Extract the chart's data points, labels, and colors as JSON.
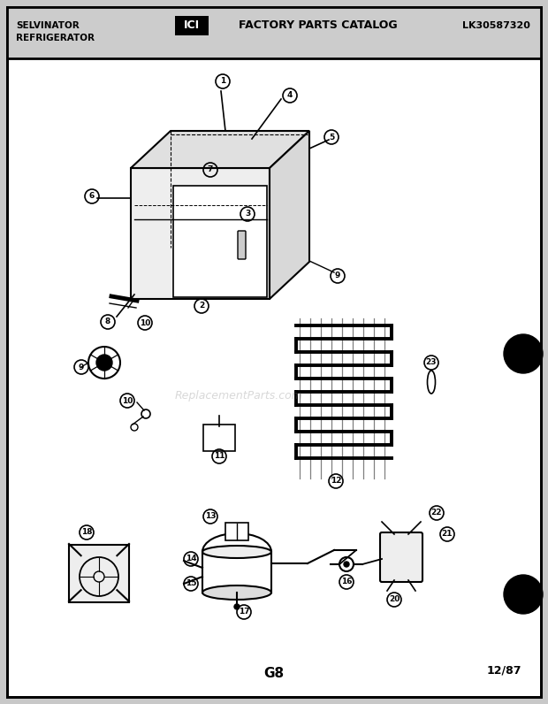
{
  "bg_color": "#ffffff",
  "border_color": "#000000",
  "title_left": "SELVINATOR\nREFRIGERATOR",
  "title_center": "FACTORY PARTS CATALOG",
  "title_right": "LK30587320",
  "footer_center": "G8",
  "footer_right": "12/87",
  "page_bg": "#c8c8c8",
  "inner_bg": "#ffffff"
}
